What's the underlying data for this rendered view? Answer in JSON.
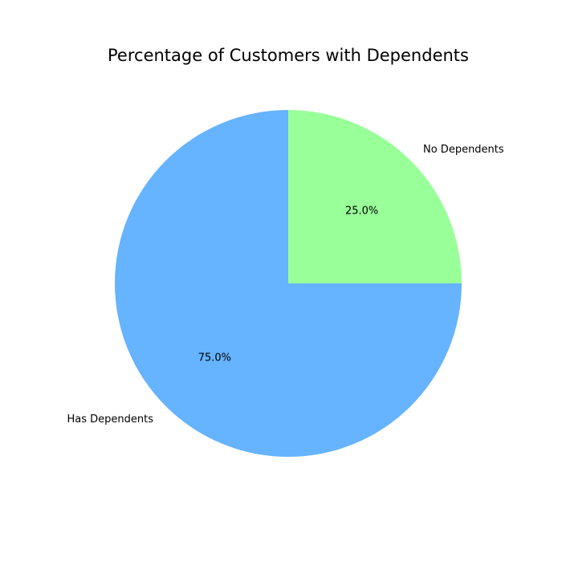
{
  "chart_data": {
    "type": "pie",
    "title": "Percentage of Customers with Dependents",
    "slices": [
      {
        "label": "No Dependents",
        "value": 25.0,
        "pct_label": "25.0%",
        "color": "#99ff99"
      },
      {
        "label": "Has Dependents",
        "value": 75.0,
        "pct_label": "75.0%",
        "color": "#66b3ff"
      }
    ],
    "start_angle_deg": 90,
    "direction": "clockwise"
  }
}
